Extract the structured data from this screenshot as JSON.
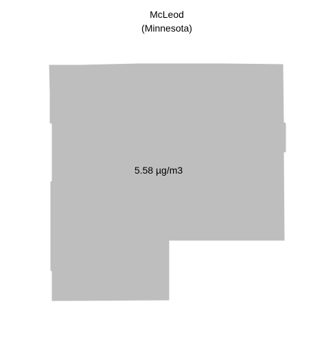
{
  "map": {
    "title": "McLeod",
    "subtitle": "(Minnesota)",
    "region_value_label": "5.58 µg/m3",
    "region_name": "McLeod",
    "fill_color": "#bebebe",
    "background_color": "#ffffff"
  }
}
